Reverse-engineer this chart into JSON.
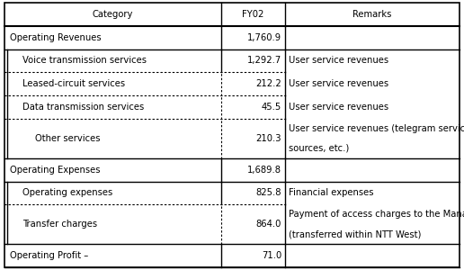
{
  "col_headers": [
    "Category",
    "FY02",
    "Remarks"
  ],
  "col_bounds": [
    0.0,
    0.476,
    0.617,
    1.0
  ],
  "rows": [
    {
      "category": "Operating Revenues",
      "fy02": "1,760.9",
      "remarks": "",
      "indent": 0,
      "bottom_border": "solid",
      "inner_border": "solid",
      "row_units": 1.0
    },
    {
      "category": "Voice transmission services",
      "fy02": "1,292.7",
      "remarks": "User service revenues",
      "indent": 1,
      "bottom_border": "dotted",
      "inner_border": "solid",
      "row_units": 1.0
    },
    {
      "category": "Leased-circuit services",
      "fy02": "212.2",
      "remarks": "User service revenues",
      "indent": 1,
      "bottom_border": "dotted",
      "inner_border": "dotted",
      "row_units": 1.0
    },
    {
      "category": "Data transmission services",
      "fy02": "45.5",
      "remarks": "User service revenues",
      "indent": 1,
      "bottom_border": "dotted",
      "inner_border": "dotted",
      "row_units": 1.0
    },
    {
      "category": "Other services",
      "fy02": "210.3",
      "remarks": "User service revenues (telegram services, miscellaneous\nsources, etc.)",
      "indent": 2,
      "bottom_border": "solid",
      "inner_border": "dotted",
      "row_units": 1.7
    },
    {
      "category": "Operating Expenses",
      "fy02": "1,689.8",
      "remarks": "",
      "indent": 0,
      "bottom_border": "solid",
      "inner_border": "solid",
      "row_units": 1.0
    },
    {
      "category": "Operating expenses",
      "fy02": "825.8",
      "remarks": "Financial expenses",
      "indent": 1,
      "bottom_border": "dotted",
      "inner_border": "solid",
      "row_units": 1.0
    },
    {
      "category": "Transfer charges",
      "fy02": "864.0",
      "remarks": "Payment of access charges to the Management Business\n(transferred within NTT West)",
      "indent": 1,
      "bottom_border": "solid",
      "inner_border": "dotted",
      "row_units": 1.7
    },
    {
      "category": "Operating Profit –",
      "fy02": "71.0",
      "remarks": "",
      "indent": 0,
      "bottom_border": "solid",
      "inner_border": "solid",
      "row_units": 1.0
    }
  ],
  "header_units": 1.0,
  "text_color": "#000000",
  "font_size": 7.2,
  "border_color": "#000000"
}
